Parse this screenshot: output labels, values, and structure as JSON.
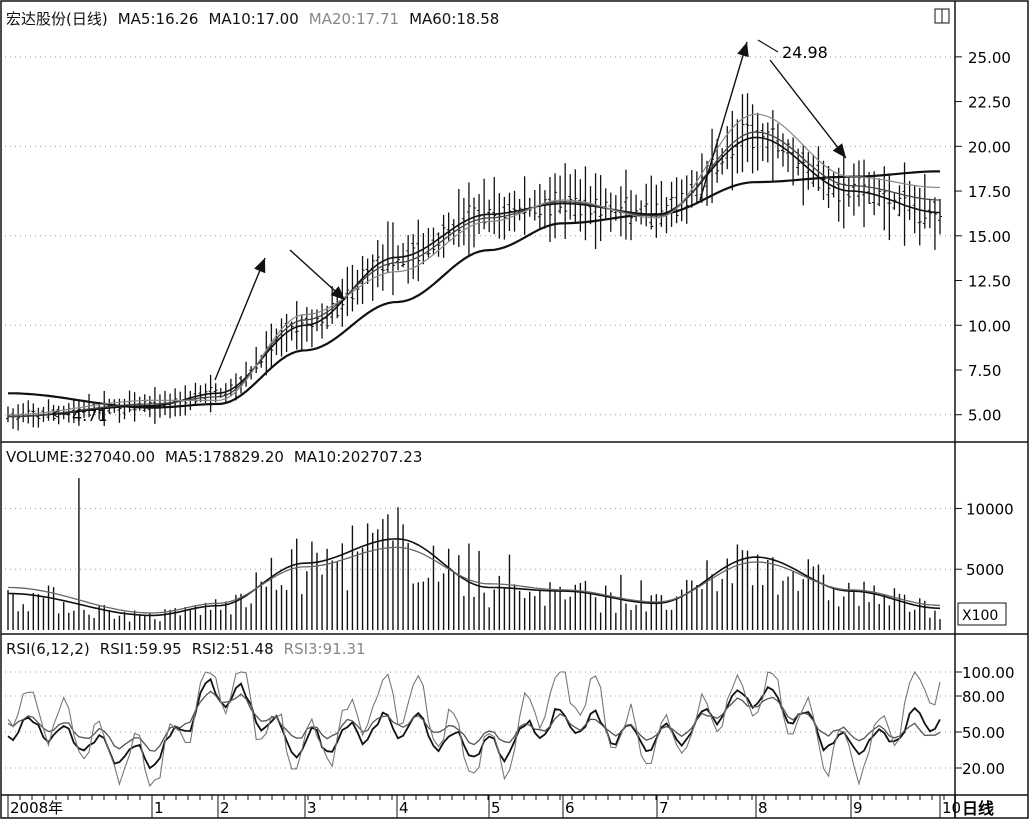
{
  "stock_name": "宏达股份(日线)",
  "price_panel": {
    "ma_labels": [
      "MA5:16.26",
      "MA10:17.00",
      "MA20:17.71",
      "MA60:18.58"
    ],
    "y_ticks": [
      "25.00",
      "22.50",
      "20.00",
      "17.50",
      "15.00",
      "12.50",
      "10.00",
      "7.50",
      "5.00"
    ],
    "low_annotation": "4.71",
    "high_annotation": "24.98"
  },
  "volume_panel": {
    "labels": [
      "VOLUME:327040.00",
      "MA5:178829.20",
      "MA10:202707.23"
    ],
    "y_ticks": [
      "10000",
      "5000"
    ],
    "unit_label": "X100"
  },
  "rsi_panel": {
    "labels": [
      "RSI(6,12,2)",
      "RSI1:59.95",
      "RSI2:51.48",
      "RSI3:91.31"
    ],
    "y_ticks": [
      "100.00",
      "80.00",
      "50.00",
      "20.00"
    ]
  },
  "x_axis": {
    "ticks": [
      "2008年",
      "1",
      "2",
      "3",
      "4",
      "5",
      "6",
      "7",
      "8",
      "9",
      "10"
    ],
    "period_label": "日线"
  },
  "colors": {
    "line": "#111111",
    "gray": "#888888",
    "grid": "#999999"
  },
  "chart_data": {
    "type": "line",
    "title": "宏达股份(日线)",
    "x": [
      "2008年",
      "1",
      "2",
      "3",
      "4",
      "5",
      "6",
      "7",
      "8",
      "9",
      "10"
    ],
    "series": [
      {
        "name": "MA60",
        "values": [
          6.2,
          5.4,
          5.6,
          8.6,
          11.3,
          14.2,
          15.7,
          16.2,
          18.0,
          18.3,
          18.6
        ]
      },
      {
        "name": "MA5",
        "values": [
          4.9,
          5.5,
          6.2,
          10.0,
          13.8,
          16.2,
          16.8,
          16.2,
          20.5,
          17.5,
          16.3
        ]
      },
      {
        "name": "MA10",
        "values": [
          4.9,
          5.6,
          6.0,
          10.3,
          13.5,
          16.0,
          16.9,
          16.1,
          20.8,
          17.8,
          17.0
        ]
      },
      {
        "name": "MA20",
        "values": [
          5.0,
          5.8,
          5.8,
          10.6,
          13.0,
          15.8,
          17.0,
          16.0,
          21.8,
          18.3,
          17.7
        ]
      }
    ],
    "ylim": [
      3.7,
      26.5
    ],
    "high": 24.98,
    "low": 4.71,
    "volume_ma": {
      "MA5": [
        3000,
        1200,
        2000,
        5500,
        7500,
        3500,
        3200,
        2200,
        6000,
        3200,
        1788
      ],
      "MA10": [
        3500,
        1400,
        2200,
        5200,
        6800,
        3800,
        3300,
        2300,
        5600,
        3300,
        2027
      ]
    },
    "volume_ylim": [
      0,
      13000
    ],
    "rsi": {
      "RSI1": [
        55,
        30,
        85,
        40,
        55,
        35,
        60,
        45,
        80,
        40,
        60
      ],
      "RSI2": [
        60,
        40,
        80,
        48,
        60,
        45,
        58,
        48,
        75,
        48,
        51
      ],
      "RSI3": [
        70,
        25,
        90,
        35,
        80,
        30,
        85,
        40,
        85,
        30,
        91
      ]
    },
    "rsi_ylim": [
      0,
      110
    ],
    "legend": "top-left",
    "grid": true
  }
}
